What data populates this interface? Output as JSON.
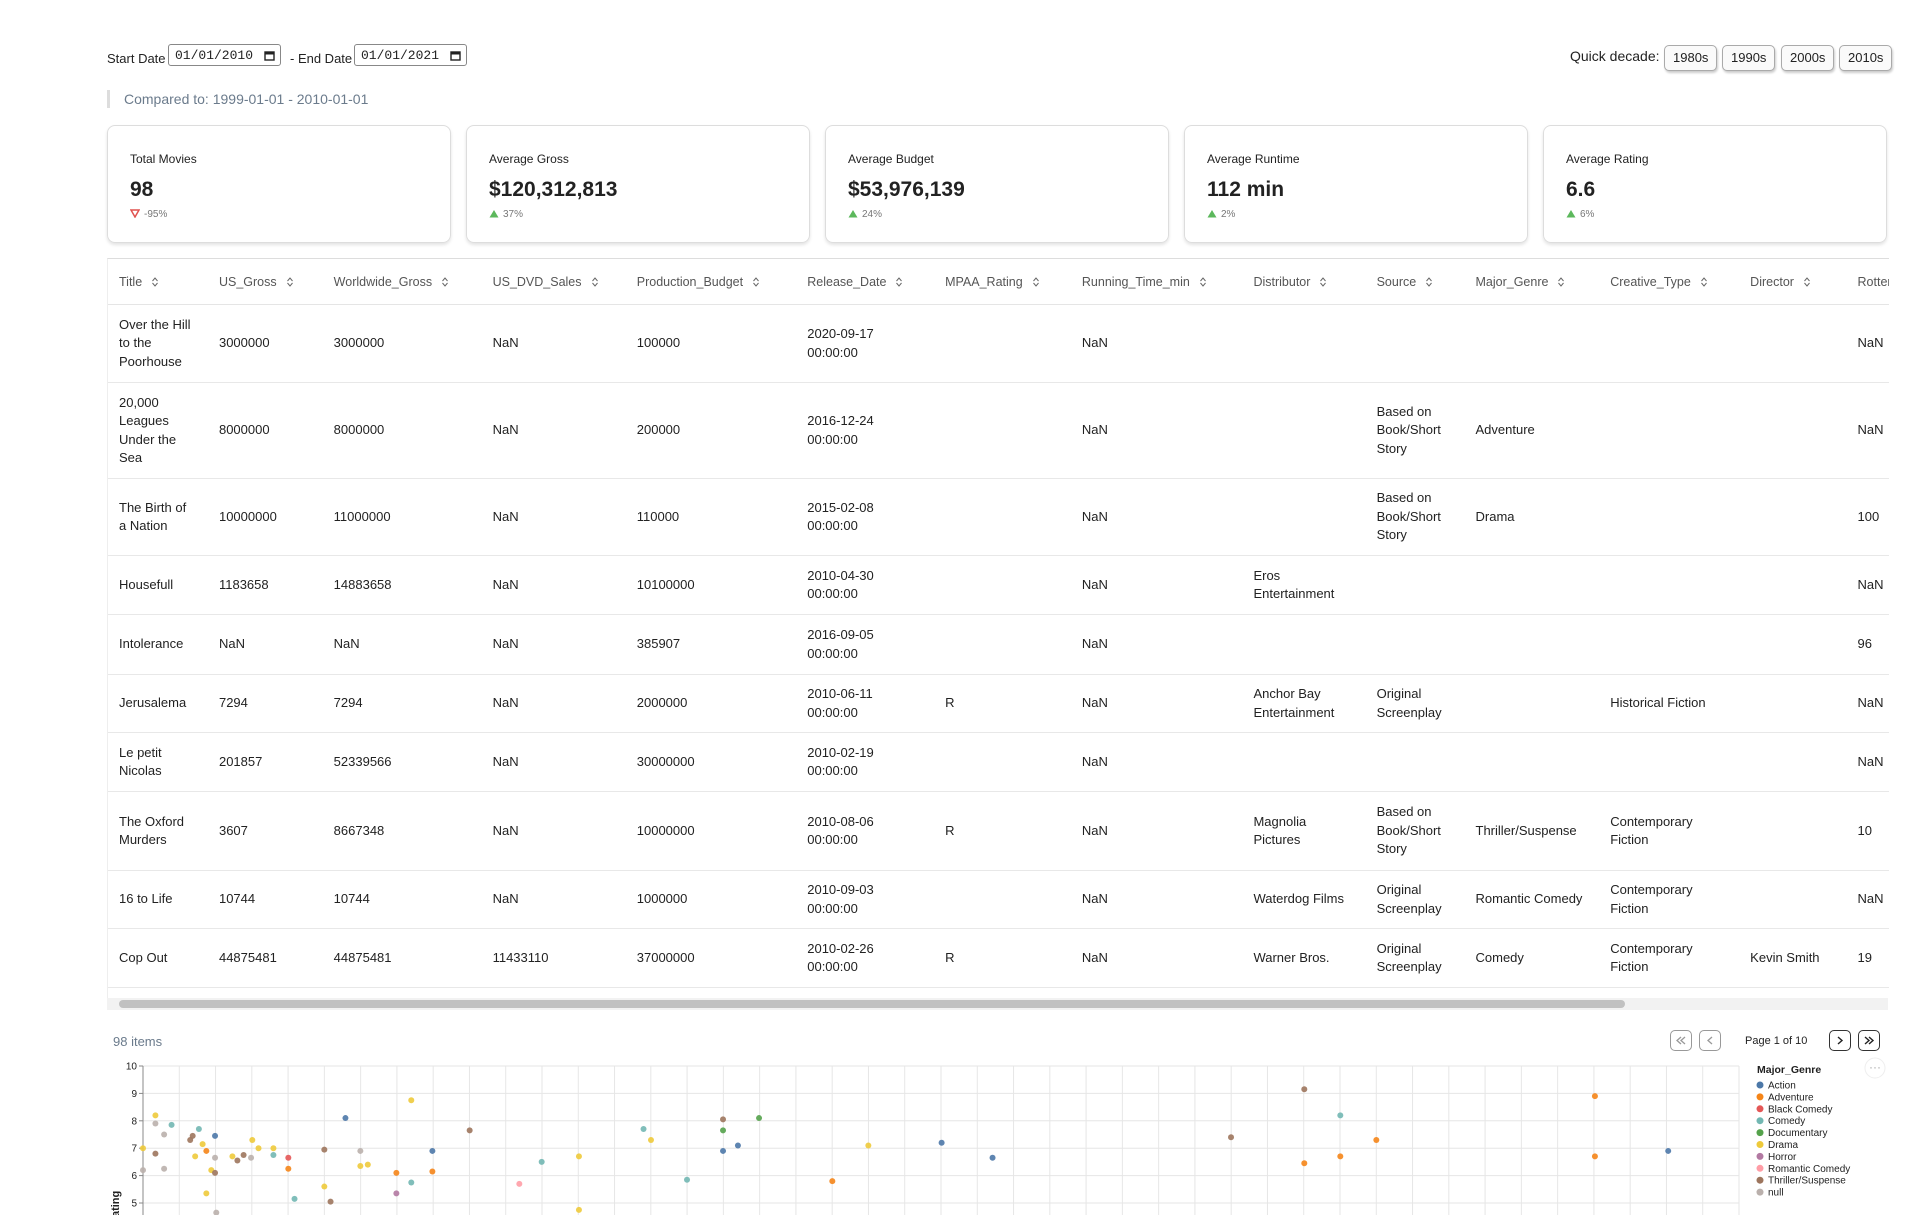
{
  "filters": {
    "start_label": "Start Date",
    "start_value": "01/01/2010",
    "end_label": "- End Date",
    "end_value": "01/01/2021",
    "quick_label": "Quick decade:",
    "decades": [
      "1980s",
      "1990s",
      "2000s",
      "2010s"
    ],
    "compared": "Compared to: 1999-01-01 - 2010-01-01"
  },
  "kpis": [
    {
      "label": "Total Movies",
      "value": "98",
      "delta": "-95%",
      "trend": "down"
    },
    {
      "label": "Average Gross",
      "value": "$120,312,813",
      "delta": "37%",
      "trend": "up"
    },
    {
      "label": "Average Budget",
      "value": "$53,976,139",
      "delta": "24%",
      "trend": "up"
    },
    {
      "label": "Average Runtime",
      "value": "112 min",
      "delta": "2%",
      "trend": "up"
    },
    {
      "label": "Average Rating",
      "value": "6.6",
      "delta": "6%",
      "trend": "up"
    }
  ],
  "table": {
    "columns": [
      "Title",
      "US_Gross",
      "Worldwide_Gross",
      "US_DVD_Sales",
      "Production_Budget",
      "Release_Date",
      "MPAA_Rating",
      "Running_Time_min",
      "Distributor",
      "Source",
      "Major_Genre",
      "Creative_Type",
      "Director",
      "Rotten_Tomatoes_Rating"
    ],
    "rows": [
      [
        "Over the Hill to the Poorhouse",
        3000000,
        3000000,
        "NaN",
        100000,
        "2020-09-17 00:00:00",
        null,
        "NaN",
        null,
        null,
        null,
        null,
        null,
        "NaN"
      ],
      [
        "20,000 Leagues Under the Sea",
        8000000,
        8000000,
        "NaN",
        200000,
        "2016-12-24 00:00:00",
        null,
        "NaN",
        null,
        "Based on Book/Short Story",
        "Adventure",
        null,
        null,
        "NaN"
      ],
      [
        "The Birth of a Nation",
        10000000,
        11000000,
        "NaN",
        110000,
        "2015-02-08 00:00:00",
        null,
        "NaN",
        null,
        "Based on Book/Short Story",
        "Drama",
        null,
        null,
        100
      ],
      [
        "Housefull",
        1183658,
        14883658,
        "NaN",
        10100000,
        "2010-04-30 00:00:00",
        null,
        "NaN",
        "Eros Entertainment",
        null,
        null,
        null,
        null,
        "NaN"
      ],
      [
        "Intolerance",
        "NaN",
        "NaN",
        "NaN",
        385907,
        "2016-09-05 00:00:00",
        null,
        "NaN",
        null,
        null,
        null,
        null,
        null,
        96
      ],
      [
        "Jerusalema",
        7294,
        7294,
        "NaN",
        2000000,
        "2010-06-11 00:00:00",
        "R",
        "NaN",
        "Anchor Bay Entertainment",
        "Original Screenplay",
        null,
        "Historical Fiction",
        null,
        "NaN"
      ],
      [
        "Le petit Nicolas",
        201857,
        52339566,
        "NaN",
        30000000,
        "2010-02-19 00:00:00",
        null,
        "NaN",
        null,
        null,
        null,
        null,
        null,
        "NaN"
      ],
      [
        "The Oxford Murders",
        3607,
        8667348,
        "NaN",
        10000000,
        "2010-08-06 00:00:00",
        "R",
        "NaN",
        "Magnolia Pictures",
        "Based on Book/Short Story",
        "Thriller/Suspense",
        "Contemporary Fiction",
        null,
        10
      ],
      [
        "16 to Life",
        10744,
        10744,
        "NaN",
        1000000,
        "2010-09-03 00:00:00",
        null,
        "NaN",
        "Waterdog Films",
        "Original Screenplay",
        "Romantic Comedy",
        "Contemporary Fiction",
        null,
        "NaN"
      ],
      [
        "Cop Out",
        44875481,
        44875481,
        11433110,
        37000000,
        "2010-02-26 00:00:00",
        "R",
        "NaN",
        "Warner Bros.",
        "Original Screenplay",
        "Comedy",
        "Contemporary Fiction",
        "Kevin Smith",
        19
      ]
    ]
  },
  "pagination": {
    "items": "98 items",
    "page": "Page 1 of 10"
  },
  "chart_data": {
    "type": "scatter",
    "y_label": "IMDB_Rating",
    "legend_title": "Major_Genre",
    "ylim": [
      5,
      10
    ],
    "yticks": [
      5,
      6,
      7,
      8,
      9,
      10
    ],
    "xlim": [
      0,
      1285
    ],
    "grid": true,
    "series": [
      {
        "name": "Action",
        "color": "#4c78a8",
        "x": [
          58,
          163,
          233,
          467,
          479,
          643,
          684,
          1228
        ],
        "y": [
          7.45,
          8.1,
          6.9,
          6.9,
          7.1,
          7.2,
          6.65,
          6.9
        ]
      },
      {
        "name": "Adventure",
        "color": "#f58518",
        "x": [
          51,
          117,
          204,
          233,
          555,
          935,
          964,
          993,
          1169,
          1169
        ],
        "y": [
          6.9,
          6.25,
          6.1,
          6.15,
          5.8,
          6.45,
          6.7,
          7.3,
          8.9,
          6.7
        ]
      },
      {
        "name": "Black Comedy",
        "color": "#e45756",
        "x": [
          117
        ],
        "y": [
          6.65
        ]
      },
      {
        "name": "Comedy",
        "color": "#72b7b2",
        "x": [
          23,
          45,
          105,
          122,
          216,
          321,
          403,
          438,
          964
        ],
        "y": [
          7.85,
          7.7,
          6.75,
          5.15,
          5.75,
          6.5,
          7.7,
          5.85,
          8.2
        ]
      },
      {
        "name": "Documentary",
        "color": "#54a24b",
        "x": [
          467,
          496
        ],
        "y": [
          7.65,
          8.1
        ]
      },
      {
        "name": "Drama",
        "color": "#eeca3b",
        "x": [
          0,
          10,
          42,
          48,
          51,
          55,
          72,
          88,
          93,
          105,
          146,
          175,
          181,
          216,
          351,
          351,
          409,
          584
        ],
        "y": [
          7.0,
          8.2,
          6.7,
          7.15,
          5.35,
          6.2,
          6.7,
          7.3,
          7.0,
          7.0,
          5.6,
          6.35,
          6.4,
          8.75,
          6.7,
          4.75,
          7.3,
          7.1
        ]
      },
      {
        "name": "Horror",
        "color": "#b279a2",
        "x": [
          204
        ],
        "y": [
          5.35
        ]
      },
      {
        "name": "Romantic Comedy",
        "color": "#ff9da6",
        "x": [
          303
        ],
        "y": [
          5.7
        ]
      },
      {
        "name": "Thriller/Suspense",
        "color": "#9d755d",
        "x": [
          10,
          38,
          40,
          58,
          76,
          81,
          146,
          151,
          263,
          467,
          876,
          935
        ],
        "y": [
          6.8,
          7.3,
          7.45,
          6.1,
          6.55,
          6.75,
          6.95,
          5.05,
          7.65,
          8.05,
          7.4,
          9.15
        ]
      },
      {
        "name": "null",
        "color": "#bab0ac",
        "x": [
          0,
          10,
          17,
          17,
          58,
          59,
          87,
          175
        ],
        "y": [
          6.2,
          7.9,
          7.5,
          6.25,
          6.65,
          4.65,
          6.65,
          6.9
        ]
      }
    ]
  }
}
